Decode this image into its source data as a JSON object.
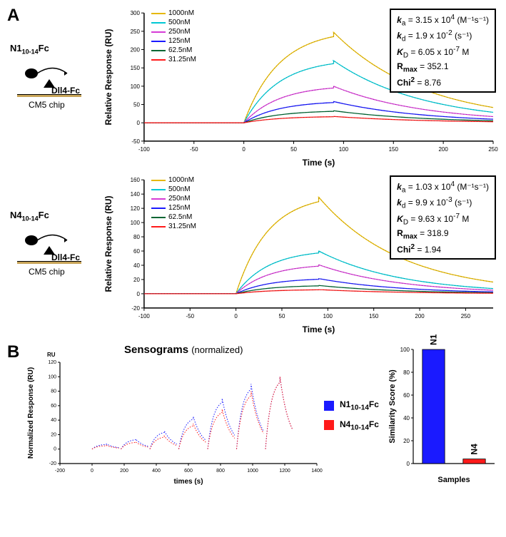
{
  "panel_a": {
    "label": "A",
    "charts": [
      {
        "diagram_label_html": "N1<sub>10-14</sub>Fc",
        "chip_label": "CM5 chip",
        "ligand": "Dll4-Fc",
        "ylabel": "Relative Response (RU)",
        "xlabel": "Time (s)",
        "xlim": [
          -100,
          250
        ],
        "ylim": [
          -50,
          300
        ],
        "xticks": [
          -100,
          -50,
          0,
          50,
          100,
          150,
          200,
          250
        ],
        "yticks": [
          -50,
          0,
          50,
          100,
          150,
          200,
          250,
          300
        ],
        "legend": [
          {
            "label": "1000nM",
            "color": "#e6b800"
          },
          {
            "label": "500nM",
            "color": "#00c8d4"
          },
          {
            "label": "250nM",
            "color": "#d63cd6"
          },
          {
            "label": "125nM",
            "color": "#1a1aff"
          },
          {
            "label": "62.5nM",
            "color": "#006633"
          },
          {
            "label": "31.25nM",
            "color": "#ff1a1a"
          }
        ],
        "series": [
          {
            "color": "#e6b800",
            "peak": 255
          },
          {
            "color": "#00c8d4",
            "peak": 175
          },
          {
            "color": "#d63cd6",
            "peak": 103
          },
          {
            "color": "#1a1aff",
            "peak": 60
          },
          {
            "color": "#006633",
            "peak": 34
          },
          {
            "color": "#ff1a1a",
            "peak": 18
          }
        ],
        "kinetics": {
          "ka": "3.15 x 10",
          "ka_exp": "4",
          "ka_unit": "(M⁻¹s⁻¹)",
          "kd": "1.9 x 10",
          "kd_exp": "-2",
          "kd_unit": "(s⁻¹)",
          "KD": "6.05 x 10",
          "KD_exp": "-7",
          "KD_unit": "M",
          "Rmax": "352.1",
          "Chi2": "8.76"
        }
      },
      {
        "diagram_label_html": "N4<sub>10-14</sub>Fc",
        "chip_label": "CM5 chip",
        "ligand": "Dll4-Fc",
        "ylabel": "Relative Response (RU)",
        "xlabel": "Time (s)",
        "xlim": [
          -100,
          280
        ],
        "ylim": [
          -20,
          160
        ],
        "xticks": [
          -100,
          -50,
          0,
          50,
          100,
          150,
          200,
          250
        ],
        "yticks": [
          -20,
          0,
          20,
          40,
          60,
          80,
          100,
          120,
          140,
          160
        ],
        "legend": [
          {
            "label": "1000nM",
            "color": "#e6b800"
          },
          {
            "label": "500nM",
            "color": "#00c8d4"
          },
          {
            "label": "250nM",
            "color": "#d63cd6"
          },
          {
            "label": "125nM",
            "color": "#1a1aff"
          },
          {
            "label": "62.5nM",
            "color": "#006633"
          },
          {
            "label": "31.25nM",
            "color": "#ff1a1a"
          }
        ],
        "series": [
          {
            "color": "#e6b800",
            "peak": 140
          },
          {
            "color": "#00c8d4",
            "peak": 62
          },
          {
            "color": "#d63cd6",
            "peak": 42
          },
          {
            "color": "#1a1aff",
            "peak": 22
          },
          {
            "color": "#006633",
            "peak": 12
          },
          {
            "color": "#ff1a1a",
            "peak": 6
          }
        ],
        "kinetics": {
          "ka": "1.03 x 10",
          "ka_exp": "4",
          "ka_unit": "(M⁻¹s⁻¹)",
          "kd": "9.9 x 10",
          "kd_exp": "-3",
          "kd_unit": "(s⁻¹)",
          "KD": "9.63 x 10",
          "KD_exp": "-7",
          "KD_unit": "M",
          "Rmax": "318.9",
          "Chi2": "1.94"
        }
      }
    ]
  },
  "panel_b": {
    "label": "B",
    "title": "Sensograms",
    "subtitle": "(normalized)",
    "ylabel": "Normalized Response (RU)",
    "xlabel": "times (s)",
    "xlim": [
      -200,
      1400
    ],
    "ylim": [
      -20,
      120
    ],
    "xticks": [
      -200,
      0,
      200,
      400,
      600,
      800,
      1000,
      1200,
      1400
    ],
    "yticks": [
      -20,
      0,
      20,
      40,
      60,
      80,
      100,
      120
    ],
    "legend": [
      {
        "label_html": "N1<sub>10-14</sub>Fc",
        "color": "#1a1aff"
      },
      {
        "label_html": "N4<sub>10-14</sub>Fc",
        "color": "#ff1a1a"
      }
    ],
    "cycles": [
      {
        "t_start": 0,
        "peak_n1": 7,
        "peak_n4": 5
      },
      {
        "t_start": 180,
        "peak_n1": 14,
        "peak_n4": 10
      },
      {
        "t_start": 360,
        "peak_n1": 25,
        "peak_n4": 18
      },
      {
        "t_start": 540,
        "peak_n1": 45,
        "peak_n4": 35
      },
      {
        "t_start": 720,
        "peak_n1": 70,
        "peak_n4": 55
      },
      {
        "t_start": 900,
        "peak_n1": 90,
        "peak_n4": 80
      },
      {
        "t_start": 1080,
        "peak_n1": 100,
        "peak_n4": 100
      }
    ],
    "bar": {
      "ylabel": "Similarity Score (%)",
      "xlabel": "Samples",
      "categories": [
        "N1",
        "N4"
      ],
      "values": [
        100,
        4
      ],
      "colors": [
        "#1a1aff",
        "#ff1a1a"
      ],
      "ylim": [
        0,
        100
      ],
      "yticks": [
        0,
        20,
        40,
        60,
        80,
        100
      ]
    }
  },
  "colors": {
    "axis": "#000000",
    "grid": "#dddddd",
    "fit_line": "#000000"
  }
}
